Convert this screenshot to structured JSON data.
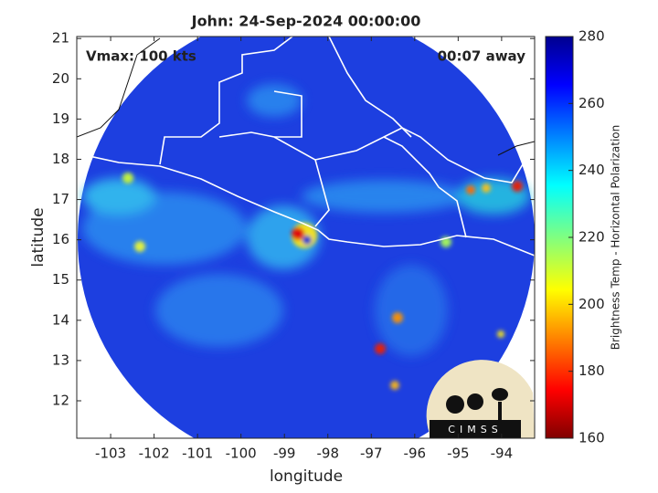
{
  "title": "John: 24-Sep-2024 00:00:00",
  "annotations": {
    "vmax": "Vmax: 100 kts",
    "time_away": "00:07 away"
  },
  "map": {
    "xlabel": "longitude",
    "ylabel": "latitude",
    "xlim": [
      -103.78,
      -93.24
    ],
    "ylim": [
      11.07,
      21.05
    ],
    "xticks": [
      -103,
      -102,
      -101,
      -100,
      -99,
      -98,
      -97,
      -96,
      -95,
      -94
    ],
    "yticks": [
      12,
      13,
      14,
      15,
      16,
      17,
      18,
      19,
      20,
      21
    ]
  },
  "colorbar": {
    "label": "Brightness Temp - Horizontal Polarization",
    "lim": [
      160,
      280
    ],
    "ticks": [
      160,
      180,
      200,
      220,
      240,
      260,
      280
    ]
  },
  "logo": {
    "text": "CIMSS"
  }
}
